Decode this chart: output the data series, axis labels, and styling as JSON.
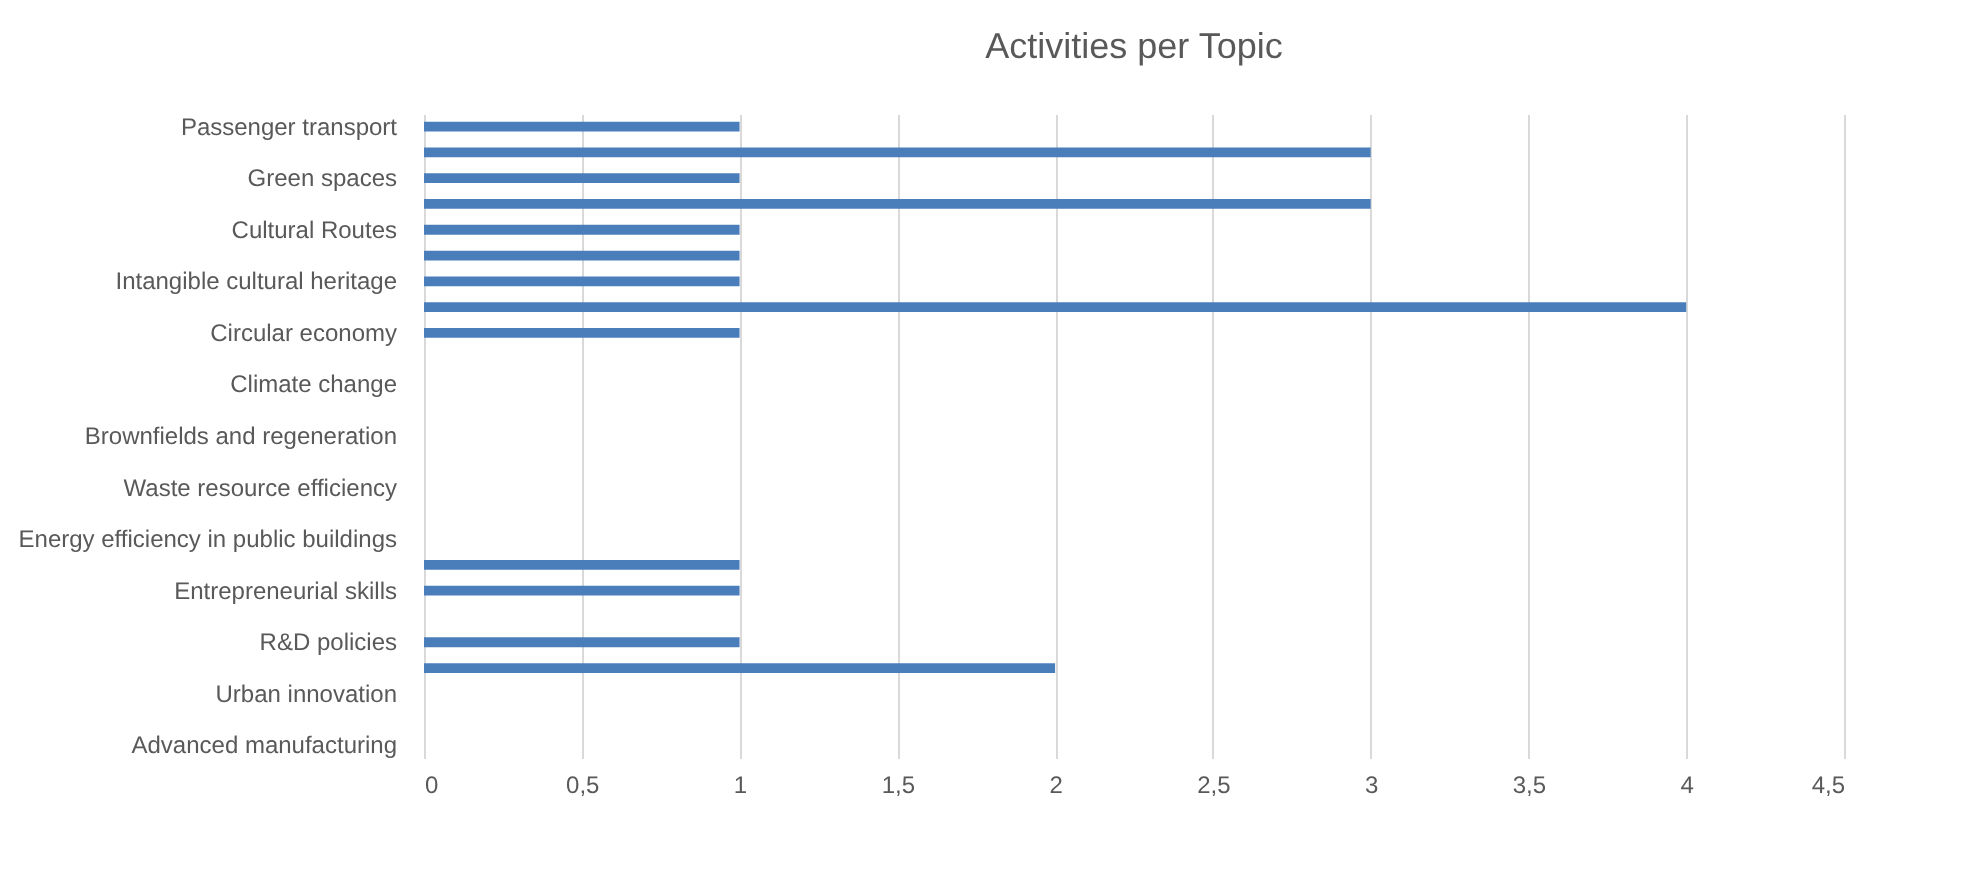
{
  "chart_data": {
    "type": "bar",
    "orientation": "horizontal",
    "title": "Activities per Topic",
    "categories": [
      "Passenger transport",
      null,
      "Green spaces",
      null,
      "Cultural Routes",
      null,
      "Intangible cultural heritage",
      null,
      "Circular economy",
      null,
      "Climate change",
      null,
      "Brownfields and regeneration",
      null,
      "Waste resource efficiency",
      null,
      "Energy efficiency in public buildings",
      null,
      "Entrepreneurial skills",
      null,
      "R&D policies",
      null,
      "Urban innovation",
      null,
      "Advanced manufacturing"
    ],
    "values": [
      1,
      3,
      1,
      3,
      1,
      1,
      1,
      4,
      1,
      0,
      0,
      0,
      0,
      0,
      0,
      0,
      0,
      1,
      1,
      0,
      1,
      2,
      0,
      0,
      0
    ],
    "color": "#4a7ebb",
    "xlim": [
      0,
      4.5
    ],
    "xticks": [
      0,
      {
        "value": 0.5,
        "label": "0,5"
      },
      1,
      {
        "value": 1.5,
        "label": "1,5"
      },
      2,
      {
        "value": 2.5,
        "label": "2,5"
      },
      3,
      {
        "value": 3.5,
        "label": "3,5"
      },
      4,
      {
        "value": 4.5,
        "label": "4,5"
      }
    ],
    "grid": "x"
  }
}
